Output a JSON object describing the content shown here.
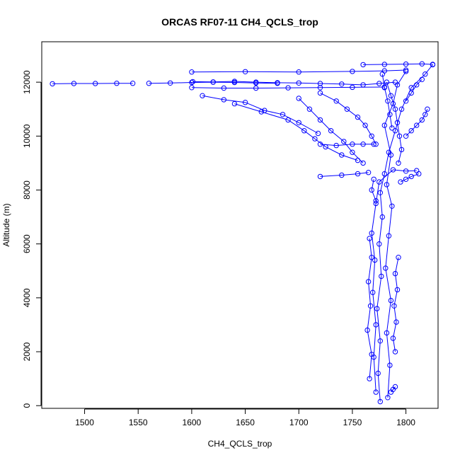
{
  "chart_data": {
    "type": "scatter",
    "title": "ORCAS RF07-11 CH4_QCLS_trop",
    "xlabel": "CH4_QCLS_trop",
    "ylabel": "Altitude (m)",
    "xlim": [
      1460,
      1830
    ],
    "ylim": [
      -100,
      13500
    ],
    "x_ticks": [
      1500,
      1550,
      1600,
      1650,
      1700,
      1750,
      1800
    ],
    "y_ticks": [
      0,
      2000,
      4000,
      6000,
      8000,
      10000,
      12000
    ],
    "grid": false,
    "legend": "none",
    "marker": "open-circle",
    "connect_points": true,
    "color": "#0000ff",
    "series": [
      {
        "segments": [
          [
            [
              1776,
              150
            ],
            [
              1774,
              1200
            ],
            [
              1776,
              2400
            ],
            [
              1773,
              3600
            ],
            [
              1777,
              4800
            ],
            [
              1775,
              6000
            ],
            [
              1778,
              7000
            ],
            [
              1776,
              7900
            ],
            [
              1780,
              8600
            ],
            [
              1784,
              9400
            ],
            [
              1790,
              10200
            ],
            [
              1796,
              11000
            ],
            [
              1805,
              11800
            ],
            [
              1818,
              12300
            ],
            [
              1825,
              12650
            ]
          ],
          [
            [
              1772,
              500
            ],
            [
              1770,
              1800
            ],
            [
              1772,
              3000
            ],
            [
              1769,
              4200
            ],
            [
              1771,
              5400
            ],
            [
              1768,
              6400
            ],
            [
              1772,
              7500
            ],
            [
              1775,
              8300
            ],
            [
              1788,
              8750
            ],
            [
              1800,
              8700
            ],
            [
              1810,
              8720
            ]
          ],
          [
            [
              1783,
              300
            ],
            [
              1785,
              1500
            ],
            [
              1782,
              2700
            ],
            [
              1786,
              3900
            ],
            [
              1781,
              5100
            ],
            [
              1784,
              6300
            ],
            [
              1787,
              7400
            ],
            [
              1782,
              8200
            ],
            [
              1786,
              9300
            ],
            [
              1780,
              10400
            ],
            [
              1788,
              11200
            ],
            [
              1792,
              11900
            ],
            [
              1800,
              12400
            ]
          ],
          [
            [
              1601,
              12020
            ],
            [
              1620,
              12010
            ],
            [
              1640,
              12030
            ],
            [
              1660,
              12000
            ],
            [
              1680,
              11980
            ],
            [
              1700,
              11970
            ],
            [
              1720,
              11950
            ],
            [
              1740,
              11930
            ],
            [
              1760,
              11900
            ],
            [
              1775,
              11950
            ],
            [
              1790,
              12000
            ]
          ],
          [
            [
              1560,
              11960
            ],
            [
              1580,
              11970
            ],
            [
              1600,
              11990
            ],
            [
              1620,
              12000
            ],
            [
              1640,
              11990
            ],
            [
              1660,
              11970
            ],
            [
              1680,
              11960
            ]
          ],
          [
            [
              1470,
              11940
            ],
            [
              1490,
              11950
            ],
            [
              1510,
              11950
            ],
            [
              1530,
              11960
            ],
            [
              1545,
              11960
            ]
          ],
          [
            [
              1600,
              11800
            ],
            [
              1630,
              11780
            ],
            [
              1660,
              11780
            ],
            [
              1690,
              11790
            ],
            [
              1720,
              11800
            ],
            [
              1750,
              11810
            ],
            [
              1780,
              11820
            ]
          ],
          [
            [
              1600,
              12380
            ],
            [
              1650,
              12390
            ],
            [
              1700,
              12380
            ],
            [
              1750,
              12400
            ],
            [
              1780,
              12420
            ],
            [
              1800,
              12450
            ]
          ],
          [
            [
              1760,
              12650
            ],
            [
              1780,
              12660
            ],
            [
              1800,
              12670
            ],
            [
              1815,
              12680
            ],
            [
              1825,
              12660
            ]
          ],
          [
            [
              1720,
              11600
            ],
            [
              1735,
              11300
            ],
            [
              1745,
              11000
            ],
            [
              1755,
              10700
            ],
            [
              1762,
              10400
            ],
            [
              1768,
              10000
            ],
            [
              1772,
              9700
            ]
          ],
          [
            [
              1640,
              11200
            ],
            [
              1665,
              10900
            ],
            [
              1690,
              10600
            ],
            [
              1705,
              10200
            ],
            [
              1715,
              9900
            ],
            [
              1725,
              9600
            ],
            [
              1740,
              9300
            ],
            [
              1755,
              9100
            ]
          ],
          [
            [
              1610,
              11500
            ],
            [
              1630,
              11350
            ],
            [
              1650,
              11250
            ],
            [
              1668,
              10950
            ],
            [
              1685,
              10800
            ],
            [
              1700,
              10500
            ],
            [
              1718,
              10100
            ]
          ],
          [
            [
              1700,
              11400
            ],
            [
              1710,
              11000
            ],
            [
              1720,
              10600
            ],
            [
              1730,
              10200
            ],
            [
              1742,
              9800
            ],
            [
              1750,
              9400
            ],
            [
              1760,
              9000
            ]
          ],
          [
            [
              1720,
              9700
            ],
            [
              1735,
              9650
            ],
            [
              1750,
              9700
            ],
            [
              1760,
              9700
            ],
            [
              1770,
              9700
            ]
          ],
          [
            [
              1720,
              8500
            ],
            [
              1740,
              8550
            ],
            [
              1755,
              8600
            ],
            [
              1765,
              8650
            ]
          ],
          [
            [
              1795,
              8300
            ],
            [
              1800,
              8400
            ],
            [
              1805,
              8500
            ],
            [
              1812,
              8600
            ]
          ],
          [
            [
              1800,
              10000
            ],
            [
              1805,
              10200
            ],
            [
              1810,
              10400
            ],
            [
              1815,
              10600
            ],
            [
              1818,
              10800
            ],
            [
              1820,
              11000
            ]
          ],
          [
            [
              1800,
              11300
            ],
            [
              1805,
              11600
            ],
            [
              1810,
              11900
            ],
            [
              1815,
              12100
            ]
          ],
          [
            [
              1782,
              12000
            ],
            [
              1786,
              11500
            ],
            [
              1790,
              11000
            ],
            [
              1792,
              10500
            ],
            [
              1794,
              10000
            ],
            [
              1796,
              9500
            ],
            [
              1793,
              9000
            ]
          ],
          [
            [
              1778,
              12300
            ],
            [
              1780,
              11800
            ],
            [
              1783,
              11300
            ],
            [
              1785,
              10800
            ],
            [
              1787,
              10300
            ]
          ],
          [
            [
              1770,
              8400
            ],
            [
              1768,
              8000
            ],
            [
              1772,
              7600
            ]
          ],
          [
            [
              1790,
              700
            ],
            [
              1788,
              600
            ],
            [
              1786,
              500
            ]
          ],
          [
            [
              1790,
              2000
            ],
            [
              1788,
              2500
            ],
            [
              1791,
              3100
            ],
            [
              1789,
              3700
            ],
            [
              1792,
              4300
            ],
            [
              1790,
              4900
            ],
            [
              1793,
              5500
            ]
          ],
          [
            [
              1766,
              1000
            ],
            [
              1768,
              1900
            ],
            [
              1764,
              2800
            ],
            [
              1767,
              3700
            ],
            [
              1765,
              4600
            ],
            [
              1768,
              5500
            ],
            [
              1766,
              6200
            ]
          ]
        ]
      }
    ]
  }
}
